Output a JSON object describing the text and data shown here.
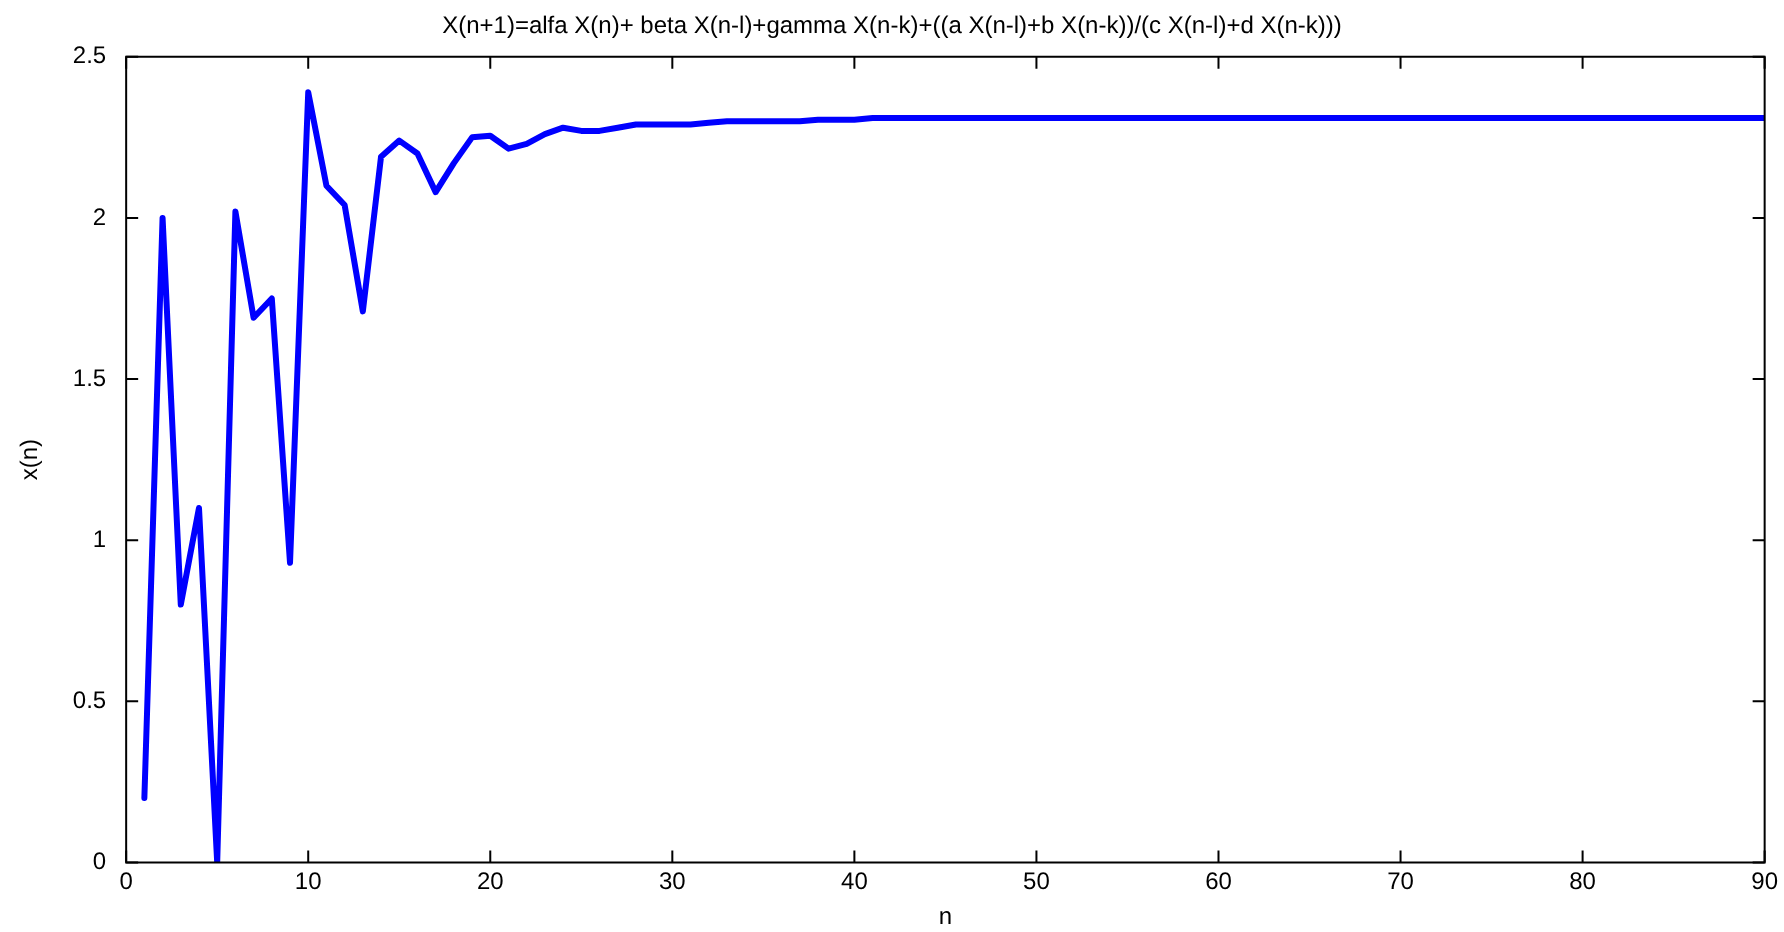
{
  "chart_data": {
    "type": "line",
    "title": "X(n+1)=alfa X(n)+ beta X(n-l)+gamma X(n-k)+((a X(n-l)+b X(n-k))/(c X(n-l)+d X(n-k)))",
    "xlabel": "n",
    "ylabel": "x(n)",
    "x": [
      1,
      2,
      3,
      4,
      5,
      6,
      7,
      8,
      9,
      10,
      11,
      12,
      13,
      14,
      15,
      16,
      17,
      18,
      19,
      20,
      21,
      22,
      23,
      24,
      25,
      26,
      27,
      28,
      29,
      30,
      31,
      32,
      33,
      34,
      35,
      36,
      37,
      38,
      39,
      40,
      41,
      42,
      43,
      44,
      45,
      46,
      47,
      48,
      49,
      50,
      51,
      52,
      53,
      54,
      55,
      56,
      57,
      58,
      59,
      60,
      61,
      62,
      63,
      64,
      65,
      66,
      67,
      68,
      69,
      70,
      71,
      72,
      73,
      74,
      75,
      76,
      77,
      78,
      79,
      80,
      81,
      82,
      83,
      84,
      85,
      86,
      87,
      88,
      89,
      90
    ],
    "series": [
      {
        "color": "#0000ff",
        "values": [
          0.2,
          2.0,
          0.8,
          1.1,
          0.0,
          2.02,
          1.69,
          1.75,
          0.93,
          2.39,
          2.1,
          2.04,
          1.71,
          2.19,
          2.24,
          2.2,
          2.08,
          2.17,
          2.25,
          2.255,
          2.215,
          2.23,
          2.26,
          2.28,
          2.27,
          2.27,
          2.28,
          2.29,
          2.29,
          2.29,
          2.29,
          2.295,
          2.3,
          2.3,
          2.3,
          2.3,
          2.3,
          2.305,
          2.305,
          2.305,
          2.31,
          2.31,
          2.31,
          2.31,
          2.31,
          2.31,
          2.31,
          2.31,
          2.31,
          2.31,
          2.31,
          2.31,
          2.31,
          2.31,
          2.31,
          2.31,
          2.31,
          2.31,
          2.31,
          2.31,
          2.31,
          2.31,
          2.31,
          2.31,
          2.31,
          2.31,
          2.31,
          2.31,
          2.31,
          2.31,
          2.31,
          2.31,
          2.31,
          2.31,
          2.31,
          2.31,
          2.31,
          2.31,
          2.31,
          2.31,
          2.31,
          2.31,
          2.31,
          2.31,
          2.31,
          2.31,
          2.31,
          2.31,
          2.31,
          2.31
        ]
      }
    ],
    "xlim": [
      0,
      90
    ],
    "xticks": [
      0,
      10,
      20,
      30,
      40,
      50,
      60,
      70,
      80,
      90
    ],
    "ylim": [
      0,
      2.5
    ],
    "yticks": [
      0,
      0.5,
      1,
      1.5,
      2,
      2.5
    ],
    "grid": false,
    "legend": false,
    "marker": "none",
    "line_style": "solid"
  }
}
